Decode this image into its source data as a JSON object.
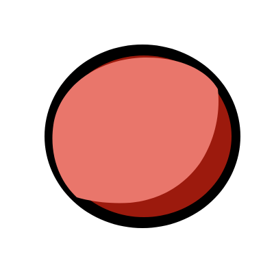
{
  "illustration": {
    "subject": "red-ball-icon",
    "colors": {
      "background": "#ffffff",
      "outline": "#000000",
      "body": "#e9766b",
      "shadow": "#9c1a0d"
    }
  }
}
